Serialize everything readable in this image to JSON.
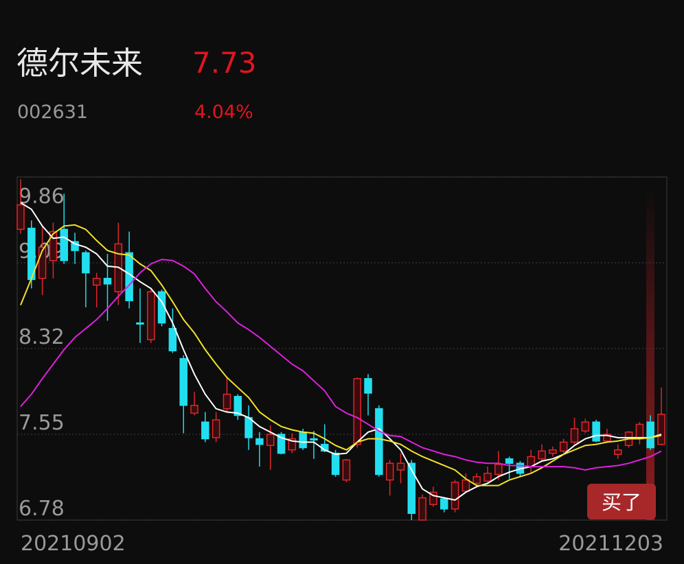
{
  "header": {
    "name": "德尔未来",
    "price": "7.73",
    "code": "002631",
    "change": "4.04%"
  },
  "button": "买了",
  "chart_data": {
    "type": "candlestick",
    "categories": [
      "20210902",
      null,
      null,
      null,
      null,
      null,
      null,
      null,
      null,
      null,
      null,
      null,
      null,
      null,
      null,
      null,
      null,
      null,
      null,
      null,
      null,
      null,
      null,
      null,
      null,
      null,
      null,
      null,
      null,
      null,
      null,
      null,
      null,
      null,
      null,
      null,
      null,
      null,
      null,
      null,
      null,
      null,
      null,
      null,
      null,
      null,
      null,
      null,
      null,
      null,
      null,
      null,
      null,
      null,
      null,
      null,
      null,
      null,
      null,
      "20211203"
    ],
    "open": [
      9.39,
      9.4,
      8.95,
      9.11,
      9.39,
      9.28,
      9.18,
      8.89,
      8.95,
      8.83,
      9.18,
      8.55,
      8.4,
      8.83,
      8.5,
      8.23,
      7.74,
      7.66,
      7.52,
      7.78,
      7.89,
      7.7,
      7.51,
      7.45,
      7.55,
      7.41,
      7.57,
      7.51,
      7.46,
      7.38,
      7.14,
      7.46,
      8.05,
      7.78,
      7.14,
      7.23,
      7.29,
      6.78,
      6.92,
      6.97,
      6.88,
      7.04,
      7.11,
      7.13,
      7.19,
      7.33,
      7.29,
      7.26,
      7.33,
      7.38,
      7.4,
      7.48,
      7.58,
      7.66,
      7.49,
      7.37,
      7.45,
      7.51,
      7.66,
      7.46
    ],
    "high": [
      9.84,
      9.47,
      9.42,
      9.45,
      9.71,
      9.36,
      9.2,
      9.0,
      9.17,
      9.45,
      9.37,
      8.86,
      8.86,
      8.85,
      8.68,
      8.26,
      7.93,
      7.75,
      7.75,
      8.07,
      7.91,
      7.81,
      7.57,
      7.63,
      7.57,
      7.56,
      7.6,
      7.58,
      7.64,
      7.41,
      7.33,
      8.06,
      8.09,
      7.81,
      7.32,
      7.38,
      7.32,
      7.01,
      7.08,
      6.98,
      7.14,
      7.2,
      7.2,
      7.26,
      7.4,
      7.35,
      7.31,
      7.41,
      7.46,
      7.44,
      7.51,
      7.7,
      7.69,
      7.68,
      7.6,
      7.46,
      7.58,
      7.66,
      7.72,
      7.97
    ],
    "low": [
      9.35,
      8.86,
      8.8,
      8.95,
      9.08,
      9.08,
      8.69,
      8.69,
      8.57,
      8.71,
      8.68,
      8.37,
      8.37,
      8.52,
      8.28,
      7.56,
      7.72,
      7.48,
      7.48,
      7.75,
      7.68,
      7.41,
      7.26,
      7.23,
      7.37,
      7.38,
      7.41,
      7.33,
      7.39,
      7.17,
      7.12,
      7.43,
      7.72,
      7.17,
      7.0,
      7.11,
      6.78,
      6.78,
      6.9,
      6.85,
      6.85,
      7.03,
      7.08,
      7.11,
      7.14,
      7.15,
      7.17,
      7.2,
      7.31,
      7.35,
      7.38,
      7.46,
      7.56,
      7.48,
      7.48,
      7.33,
      7.43,
      7.46,
      7.41,
      7.45
    ],
    "close": [
      9.61,
      8.94,
      9.23,
      9.37,
      9.11,
      9.2,
      9.0,
      8.95,
      8.9,
      9.26,
      8.75,
      8.54,
      8.83,
      8.55,
      8.3,
      7.81,
      7.81,
      7.51,
      7.68,
      7.91,
      7.72,
      7.52,
      7.46,
      7.55,
      7.38,
      7.51,
      7.43,
      7.5,
      7.4,
      7.19,
      7.32,
      8.05,
      7.92,
      7.19,
      7.29,
      7.29,
      6.84,
      6.98,
      7.03,
      6.88,
      7.12,
      7.14,
      7.17,
      7.2,
      7.28,
      7.29,
      7.2,
      7.35,
      7.4,
      7.41,
      7.48,
      7.6,
      7.66,
      7.49,
      7.55,
      7.41,
      7.57,
      7.64,
      7.43,
      7.73
    ],
    "up_color": "#e0262b",
    "down_color": "#22dff0",
    "series": [
      {
        "color": "#ffffff",
        "values": [
          9.63,
          9.57,
          9.42,
          9.31,
          9.32,
          9.26,
          9.23,
          9.17,
          9.06,
          9.05,
          8.99,
          8.92,
          8.86,
          8.74,
          8.55,
          8.31,
          8.09,
          7.91,
          7.78,
          7.75,
          7.74,
          7.7,
          7.62,
          7.57,
          7.52,
          7.49,
          7.48,
          7.48,
          7.41,
          7.37,
          7.38,
          7.48,
          7.57,
          7.6,
          7.51,
          7.41,
          7.23,
          7.06,
          7.0,
          6.98,
          6.96,
          7.03,
          7.08,
          7.11,
          7.17,
          7.21,
          7.24,
          7.26,
          7.31,
          7.33,
          7.37,
          7.45,
          7.51,
          7.54,
          7.54,
          7.52,
          7.52,
          7.52,
          7.52,
          7.55
        ]
      },
      {
        "color": "#f2e22a",
        "values": [
          8.71,
          8.95,
          9.2,
          9.35,
          9.42,
          9.43,
          9.39,
          9.29,
          9.2,
          9.17,
          9.16,
          9.08,
          9.02,
          8.89,
          8.74,
          8.58,
          8.46,
          8.31,
          8.18,
          8.06,
          7.97,
          7.88,
          7.75,
          7.68,
          7.62,
          7.59,
          7.57,
          7.56,
          7.51,
          7.45,
          7.41,
          7.48,
          7.51,
          7.51,
          7.49,
          7.46,
          7.4,
          7.35,
          7.31,
          7.27,
          7.23,
          7.15,
          7.09,
          7.09,
          7.09,
          7.14,
          7.17,
          7.2,
          7.25,
          7.31,
          7.37,
          7.41,
          7.45,
          7.46,
          7.48,
          7.49,
          7.51,
          7.51,
          7.52,
          7.54
        ]
      },
      {
        "color": "#e020e0",
        "values": [
          7.8,
          7.91,
          8.05,
          8.18,
          8.31,
          8.42,
          8.5,
          8.58,
          8.68,
          8.79,
          8.89,
          9.0,
          9.08,
          9.12,
          9.11,
          9.06,
          8.99,
          8.86,
          8.74,
          8.65,
          8.55,
          8.49,
          8.42,
          8.34,
          8.26,
          8.18,
          8.12,
          8.03,
          7.94,
          7.8,
          7.74,
          7.7,
          7.64,
          7.58,
          7.54,
          7.53,
          7.48,
          7.43,
          7.4,
          7.37,
          7.35,
          7.32,
          7.3,
          7.29,
          7.29,
          7.27,
          7.27,
          7.26,
          7.26,
          7.26,
          7.26,
          7.25,
          7.23,
          7.25,
          7.26,
          7.27,
          7.29,
          7.32,
          7.35,
          7.4
        ]
      }
    ],
    "ylim": [
      6.78,
      9.86
    ],
    "yticks": [
      6.78,
      7.55,
      8.32,
      9.09,
      9.86
    ],
    "grid": true
  }
}
